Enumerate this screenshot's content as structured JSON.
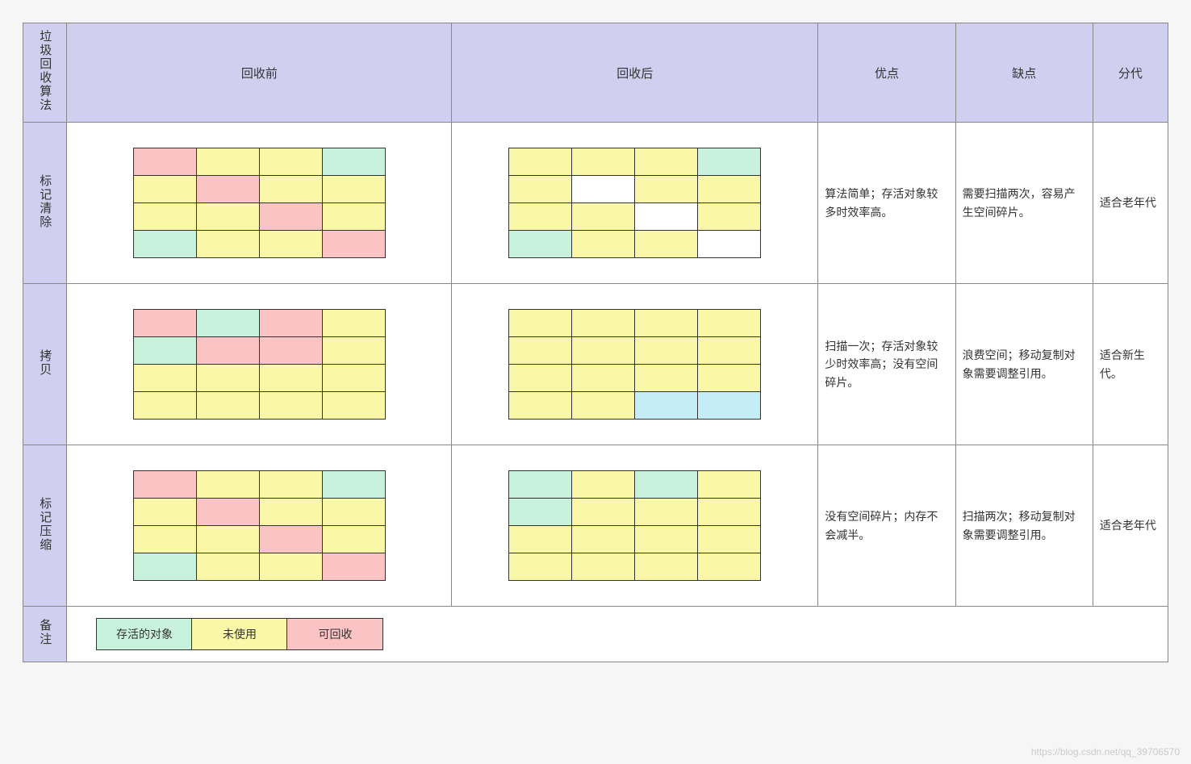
{
  "colors": {
    "header_bg": "#d0cff0",
    "rowlabel_bg": "#d0cff0",
    "survive": "#c9f2dd",
    "unused": "#faf8a8",
    "recyclable": "#fac4c4",
    "blank": "#ffffff",
    "blue_blank": "#c5edf6",
    "border": "#333333"
  },
  "headers": {
    "algo": "垃圾回收算法",
    "before": "回收前",
    "after": "回收后",
    "pros": "优点",
    "cons": "缺点",
    "gen": "分代"
  },
  "col_widths": {
    "rowlabel": "48px",
    "before": "420px",
    "after": "400px",
    "pros": "150px",
    "cons": "150px",
    "gen": "82px"
  },
  "legend": {
    "survive": "存活的对象",
    "unused": "未使用",
    "recyclable": "可回收"
  },
  "rows": [
    {
      "name": "标记清除",
      "before": [
        [
          "recyclable",
          "unused",
          "unused",
          "survive"
        ],
        [
          "unused",
          "recyclable",
          "unused",
          "unused"
        ],
        [
          "unused",
          "unused",
          "recyclable",
          "unused"
        ],
        [
          "survive",
          "unused",
          "unused",
          "recyclable"
        ]
      ],
      "after": [
        [
          "unused",
          "unused",
          "unused",
          "survive"
        ],
        [
          "unused",
          "blank",
          "unused",
          "unused"
        ],
        [
          "unused",
          "unused",
          "blank",
          "unused"
        ],
        [
          "survive",
          "unused",
          "unused",
          "blank"
        ]
      ],
      "pros": "算法简单；存活对象较多时效率高。",
      "cons": "需要扫描两次，容易产生空间碎片。",
      "gen": "适合老年代"
    },
    {
      "name": "拷贝",
      "before": [
        [
          "recyclable",
          "survive",
          "recyclable",
          "unused"
        ],
        [
          "survive",
          "recyclable",
          "recyclable",
          "unused"
        ],
        [
          "unused",
          "unused",
          "unused",
          "unused"
        ],
        [
          "unused",
          "unused",
          "unused",
          "unused"
        ]
      ],
      "after": [
        [
          "unused",
          "unused",
          "unused",
          "unused"
        ],
        [
          "unused",
          "unused",
          "unused",
          "unused"
        ],
        [
          "unused",
          "unused",
          "unused",
          "unused"
        ],
        [
          "unused",
          "unused",
          "blue_blank",
          "blue_blank"
        ]
      ],
      "pros": "扫描一次；存活对象较少时效率高；没有空间碎片。",
      "cons": "浪费空间；移动复制对象需要调整引用。",
      "gen": "适合新生代。"
    },
    {
      "name": "标记压缩",
      "before": [
        [
          "recyclable",
          "unused",
          "unused",
          "survive"
        ],
        [
          "unused",
          "recyclable",
          "unused",
          "unused"
        ],
        [
          "unused",
          "unused",
          "recyclable",
          "unused"
        ],
        [
          "survive",
          "unused",
          "unused",
          "recyclable"
        ]
      ],
      "after": [
        [
          "survive",
          "unused",
          "survive",
          "unused"
        ],
        [
          "survive",
          "unused",
          "unused",
          "unused"
        ],
        [
          "unused",
          "unused",
          "unused",
          "unused"
        ],
        [
          "unused",
          "unused",
          "unused",
          "unused"
        ]
      ],
      "pros": "没有空间碎片；内存不会减半。",
      "cons": "扫描两次；移动复制对象需要调整引用。",
      "gen": "适合老年代"
    }
  ],
  "note_label": "备注",
  "watermark": "https://blog.csdn.net/qq_39706570"
}
